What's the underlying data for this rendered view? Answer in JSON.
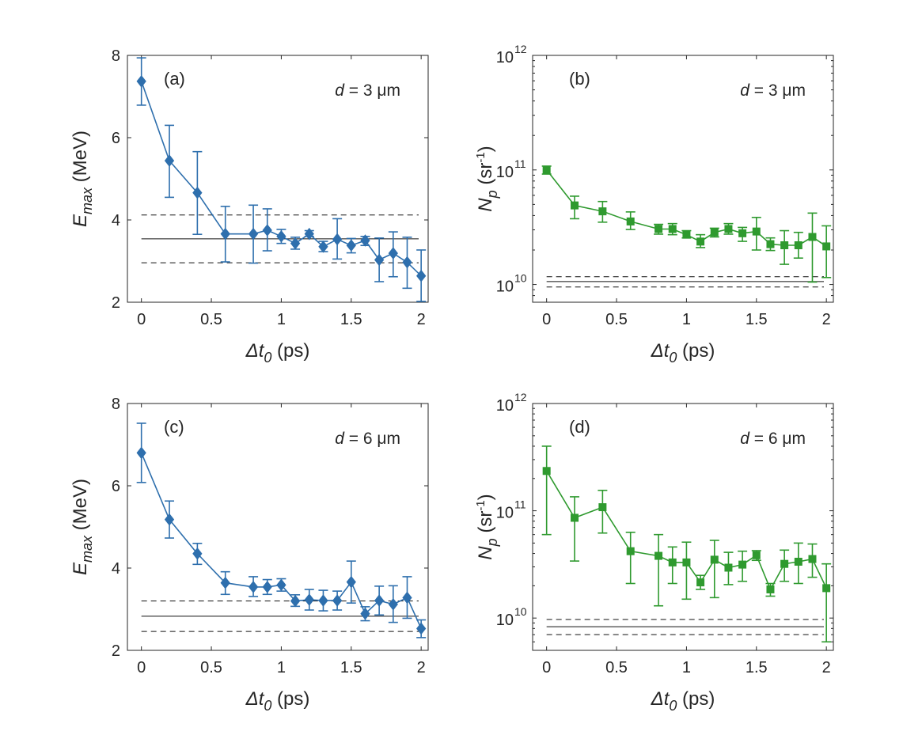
{
  "chart_data": [
    {
      "type": "scatter",
      "panel_label": "(a)",
      "annotation": {
        "italic": "d",
        "text": " = 3 μm"
      },
      "xlabel": {
        "symbol": "Δt",
        "subscript": "0",
        "unit": " (ps)"
      },
      "ylabel": {
        "symbol": "E",
        "subscript": "max",
        "unit": " (MeV)"
      },
      "xlim": [
        -0.1,
        2.05
      ],
      "ylim": [
        2,
        8
      ],
      "yscale": "linear",
      "xticks": [
        0,
        0.5,
        1,
        1.5,
        2
      ],
      "xtick_labels": [
        "0",
        "0.5",
        "1",
        "1.5",
        "2"
      ],
      "yticks": [
        2,
        4,
        6,
        8
      ],
      "ytick_labels": [
        "2",
        "4",
        "6",
        "8"
      ],
      "color": "#2e6fad",
      "marker": "diamond",
      "x": [
        0,
        0.2,
        0.4,
        0.6,
        0.8,
        0.9,
        1.0,
        1.1,
        1.2,
        1.3,
        1.4,
        1.5,
        1.6,
        1.7,
        1.8,
        1.9,
        2.0
      ],
      "y": [
        7.37,
        5.44,
        4.66,
        3.66,
        3.66,
        3.75,
        3.6,
        3.43,
        3.66,
        3.35,
        3.53,
        3.38,
        3.5,
        3.03,
        3.19,
        2.97,
        2.64
      ],
      "yerr_low": [
        6.79,
        4.55,
        3.65,
        2.98,
        2.95,
        3.25,
        3.43,
        3.29,
        3.6,
        3.23,
        3.05,
        3.2,
        3.38,
        2.5,
        2.62,
        2.34,
        2.02
      ],
      "yerr_high": [
        7.94,
        6.3,
        5.66,
        4.33,
        4.36,
        4.27,
        3.77,
        3.58,
        3.74,
        3.48,
        4.03,
        3.55,
        3.6,
        3.56,
        3.71,
        3.58,
        3.27
      ],
      "reference_lines": {
        "solid": 3.54,
        "dashed": [
          2.96,
          4.12
        ]
      },
      "grid": false
    },
    {
      "type": "scatter",
      "panel_label": "(b)",
      "annotation": {
        "italic": "d",
        "text": " = 3 μm"
      },
      "xlabel": {
        "symbol": "Δt",
        "subscript": "0",
        "unit": " (ps)"
      },
      "ylabel": {
        "symbol": "N",
        "subscript": "p",
        "unit_base": " (sr",
        "unit_sup": "-1",
        "unit_close": ")"
      },
      "xlim": [
        -0.1,
        2.05
      ],
      "ylim": [
        7000000000.0,
        1000000000000.0
      ],
      "yscale": "log",
      "xticks": [
        0,
        0.5,
        1,
        1.5,
        2
      ],
      "xtick_labels": [
        "0",
        "0.5",
        "1",
        "1.5",
        "2"
      ],
      "yticks": [
        10000000000.0,
        100000000000.0,
        1000000000000.0
      ],
      "ytick_labels": [
        {
          "base": "10",
          "exp": "10"
        },
        {
          "base": "10",
          "exp": "11"
        },
        {
          "base": "10",
          "exp": "12"
        }
      ],
      "color": "#2f9a2f",
      "marker": "square",
      "x": [
        0,
        0.2,
        0.4,
        0.6,
        0.8,
        0.9,
        1.0,
        1.1,
        1.2,
        1.3,
        1.4,
        1.5,
        1.6,
        1.7,
        1.8,
        1.9,
        2.0
      ],
      "y": [
        100000000000.0,
        49000000000.0,
        43500000000.0,
        35500000000.0,
        30500000000.0,
        30500000000.0,
        27200000000.0,
        23700000000.0,
        28500000000.0,
        30500000000.0,
        28000000000.0,
        29000000000.0,
        22500000000.0,
        22000000000.0,
        22000000000.0,
        26000000000.0,
        21500000000.0
      ],
      "yerr_low": [
        92000000000.0,
        37500000000.0,
        35000000000.0,
        30200000000.0,
        27500000000.0,
        27200000000.0,
        25500000000.0,
        21000000000.0,
        26000000000.0,
        27500000000.0,
        23800000000.0,
        20000000000.0,
        19800000000.0,
        15000000000.0,
        17000000000.0,
        10500000000.0,
        11500000000.0
      ],
      "yerr_high": [
        108000000000.0,
        59000000000.0,
        53000000000.0,
        43000000000.0,
        33500000000.0,
        34000000000.0,
        29500000000.0,
        27200000000.0,
        31000000000.0,
        34000000000.0,
        31500000000.0,
        38500000000.0,
        25500000000.0,
        29500000000.0,
        28500000000.0,
        42000000000.0,
        32500000000.0
      ],
      "reference_lines": {
        "solid": 10600000000.0,
        "dashed": [
          9500000000.0,
          11700000000.0
        ]
      },
      "grid": false
    },
    {
      "type": "scatter",
      "panel_label": "(c)",
      "annotation": {
        "italic": "d",
        "text": " = 6 μm"
      },
      "xlabel": {
        "symbol": "Δt",
        "subscript": "0",
        "unit": " (ps)"
      },
      "ylabel": {
        "symbol": "E",
        "subscript": "max",
        "unit": " (MeV)"
      },
      "xlim": [
        -0.1,
        2.05
      ],
      "ylim": [
        2,
        8
      ],
      "yscale": "linear",
      "xticks": [
        0,
        0.5,
        1,
        1.5,
        2
      ],
      "xtick_labels": [
        "0",
        "0.5",
        "1",
        "1.5",
        "2"
      ],
      "yticks": [
        2,
        4,
        6,
        8
      ],
      "ytick_labels": [
        "2",
        "4",
        "6",
        "8"
      ],
      "color": "#2e6fad",
      "marker": "diamond",
      "x": [
        0,
        0.2,
        0.4,
        0.6,
        0.8,
        0.9,
        1.0,
        1.1,
        1.2,
        1.3,
        1.4,
        1.5,
        1.6,
        1.7,
        1.8,
        1.9,
        2.0
      ],
      "y": [
        6.8,
        5.18,
        4.35,
        3.64,
        3.54,
        3.54,
        3.59,
        3.2,
        3.23,
        3.21,
        3.21,
        3.66,
        2.89,
        3.21,
        3.12,
        3.28,
        2.53
      ],
      "yerr_low": [
        6.08,
        4.73,
        4.09,
        3.36,
        3.31,
        3.36,
        3.44,
        3.07,
        2.98,
        2.96,
        2.98,
        3.15,
        2.72,
        2.86,
        2.68,
        2.78,
        2.31
      ],
      "yerr_high": [
        7.52,
        5.63,
        4.6,
        3.91,
        3.79,
        3.72,
        3.74,
        3.35,
        3.48,
        3.46,
        3.44,
        4.17,
        3.06,
        3.56,
        3.57,
        3.79,
        2.74
      ],
      "reference_lines": {
        "solid": 2.83,
        "dashed": [
          2.46,
          3.2
        ]
      },
      "grid": false
    },
    {
      "type": "scatter",
      "panel_label": "(d)",
      "annotation": {
        "italic": "d",
        "text": " = 6 μm"
      },
      "xlabel": {
        "symbol": "Δt",
        "subscript": "0",
        "unit": " (ps)"
      },
      "ylabel": {
        "symbol": "N",
        "subscript": "p",
        "unit_base": " (sr",
        "unit_sup": "-1",
        "unit_close": ")"
      },
      "xlim": [
        -0.1,
        2.05
      ],
      "ylim": [
        5000000000.0,
        1000000000000.0
      ],
      "yscale": "log",
      "xticks": [
        0,
        0.5,
        1,
        1.5,
        2
      ],
      "xtick_labels": [
        "0",
        "0.5",
        "1",
        "1.5",
        "2"
      ],
      "yticks": [
        10000000000.0,
        100000000000.0,
        1000000000000.0
      ],
      "ytick_labels": [
        {
          "base": "10",
          "exp": "10"
        },
        {
          "base": "10",
          "exp": "11"
        },
        {
          "base": "10",
          "exp": "12"
        }
      ],
      "color": "#2f9a2f",
      "marker": "square",
      "x": [
        0,
        0.2,
        0.4,
        0.6,
        0.8,
        0.9,
        1.0,
        1.1,
        1.2,
        1.3,
        1.4,
        1.5,
        1.6,
        1.7,
        1.8,
        1.9,
        2.0
      ],
      "y": [
        235000000000.0,
        86000000000.0,
        108000000000.0,
        42000000000.0,
        38000000000.0,
        33000000000.0,
        33000000000.0,
        21500000000.0,
        35000000000.0,
        29500000000.0,
        31500000000.0,
        38500000000.0,
        18500000000.0,
        32000000000.0,
        33500000000.0,
        35500000000.0,
        19000000000.0
      ],
      "yerr_low": [
        60000000000.0,
        34000000000.0,
        62000000000.0,
        21000000000.0,
        13000000000.0,
        21000000000.0,
        15000000000.0,
        18500000000.0,
        15500000000.0,
        20500000000.0,
        22000000000.0,
        34500000000.0,
        16000000000.0,
        22000000000.0,
        21000000000.0,
        24000000000.0,
        6000000000.0
      ],
      "yerr_high": [
        400000000000.0,
        135000000000.0,
        155000000000.0,
        63000000000.0,
        60000000000.0,
        46000000000.0,
        51000000000.0,
        25000000000.0,
        53000000000.0,
        41000000000.0,
        42000000000.0,
        42500000000.0,
        21000000000.0,
        43000000000.0,
        50000000000.0,
        49000000000.0,
        32000000000.0
      ],
      "reference_lines": {
        "solid": 8300000000.0,
        "dashed": [
          7000000000.0,
          9700000000.0
        ]
      },
      "grid": false
    }
  ]
}
